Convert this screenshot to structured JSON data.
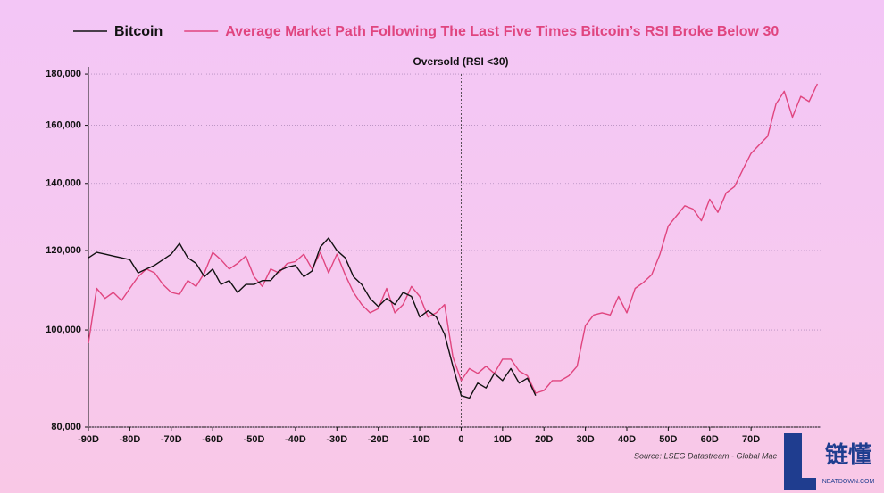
{
  "chart_data": {
    "type": "line",
    "annotation": "Oversold (RSI <30)",
    "annotation_x": 0,
    "source": "Source: LSEG Datastream - Global Mac",
    "watermark": {
      "logo": "链懂",
      "site": "NEATDOWN.COM"
    },
    "y_scale": "log",
    "grid": true,
    "legend": "top",
    "xlim": [
      -90,
      87
    ],
    "ylim": [
      80000,
      183000
    ],
    "xticks": [
      {
        "value": -90,
        "label": "-90D"
      },
      {
        "value": -80,
        "label": "-80D"
      },
      {
        "value": -70,
        "label": "-70D"
      },
      {
        "value": -60,
        "label": "-60D"
      },
      {
        "value": -50,
        "label": "-50D"
      },
      {
        "value": -40,
        "label": "-40D"
      },
      {
        "value": -30,
        "label": "-30D"
      },
      {
        "value": -20,
        "label": "-20D"
      },
      {
        "value": -10,
        "label": "-10D"
      },
      0,
      {
        "value": 10,
        "label": "10D"
      },
      {
        "value": 20,
        "label": "20D"
      },
      {
        "value": 30,
        "label": "30D"
      },
      {
        "value": 40,
        "label": "40D"
      },
      {
        "value": 50,
        "label": "50D"
      },
      {
        "value": 60,
        "label": "60D"
      },
      {
        "value": 70,
        "label": "70D"
      }
    ],
    "yticks": [
      {
        "value": 80000,
        "label": "80,000"
      },
      {
        "value": 100000,
        "label": "100,000"
      },
      {
        "value": 120000,
        "label": "120,000"
      },
      {
        "value": 140000,
        "label": "140,000"
      },
      {
        "value": 160000,
        "label": "160,000"
      },
      {
        "value": 180000,
        "label": "180,000"
      }
    ],
    "x": [
      -90,
      -88,
      -86,
      -84,
      -82,
      -80,
      -78,
      -76,
      -74,
      -72,
      -70,
      -68,
      -66,
      -64,
      -62,
      -60,
      -58,
      -56,
      -54,
      -52,
      -50,
      -48,
      -46,
      -44,
      -42,
      -40,
      -38,
      -36,
      -34,
      -32,
      -30,
      -28,
      -26,
      -24,
      -22,
      -20,
      -18,
      -16,
      -14,
      -12,
      -10,
      -8,
      -6,
      -4,
      -2,
      0,
      2,
      4,
      6,
      8,
      10,
      12,
      14,
      16,
      18,
      20,
      22,
      24,
      26,
      28,
      30,
      32,
      34,
      36,
      38,
      40,
      42,
      44,
      46,
      48,
      50,
      52,
      54,
      56,
      58,
      60,
      62,
      64,
      66,
      68,
      70,
      72,
      74,
      76,
      78,
      80,
      82,
      84,
      86
    ],
    "series": [
      {
        "name": "Bitcoin",
        "color": "#111111",
        "values": [
          118000,
          119500,
          119000,
          118500,
          118000,
          117500,
          114000,
          115000,
          116000,
          117500,
          119000,
          122000,
          118000,
          116500,
          113000,
          115000,
          111000,
          112000,
          109000,
          111000,
          111000,
          112000,
          112000,
          114500,
          115500,
          116000,
          113000,
          114500,
          121000,
          123500,
          120000,
          118000,
          113000,
          111000,
          107500,
          105500,
          107500,
          106000,
          109000,
          108000,
          103000,
          104500,
          103000,
          99000,
          92000,
          86000,
          85500,
          88500,
          87500,
          90500,
          89000,
          91500,
          88500,
          89500,
          86000,
          null,
          null,
          null,
          null,
          null,
          null,
          null,
          null,
          null,
          null,
          null,
          null,
          null,
          null,
          null,
          null,
          null,
          null,
          null,
          null,
          null,
          null,
          null,
          null,
          null,
          null,
          null,
          null,
          null,
          null,
          null,
          null,
          null,
          null
        ]
      },
      {
        "name": "Average Market Path Following The Last Five Times Bitcoin’s RSI Broke Below 30",
        "color": "#e0457f",
        "values": [
          97000,
          110000,
          107500,
          109000,
          107000,
          110000,
          113000,
          115000,
          114000,
          111000,
          109000,
          108500,
          112000,
          110500,
          114000,
          119500,
          117500,
          115000,
          116500,
          118500,
          113000,
          110500,
          115000,
          114000,
          116500,
          117000,
          119000,
          115000,
          119500,
          114000,
          119000,
          113500,
          109000,
          106000,
          104000,
          105000,
          110000,
          104000,
          106000,
          110500,
          108000,
          103000,
          104000,
          106000,
          94000,
          89000,
          91500,
          90500,
          92000,
          90500,
          93500,
          93500,
          91000,
          90000,
          86500,
          87000,
          89000,
          89000,
          90000,
          92000,
          101000,
          103500,
          104000,
          103500,
          108000,
          104000,
          110000,
          111500,
          113500,
          119000,
          127000,
          130000,
          133000,
          132000,
          128500,
          135000,
          131000,
          137000,
          139000,
          144500,
          150000,
          153000,
          156000,
          168000,
          173000,
          163000,
          171000,
          169000,
          176000
        ]
      }
    ]
  }
}
